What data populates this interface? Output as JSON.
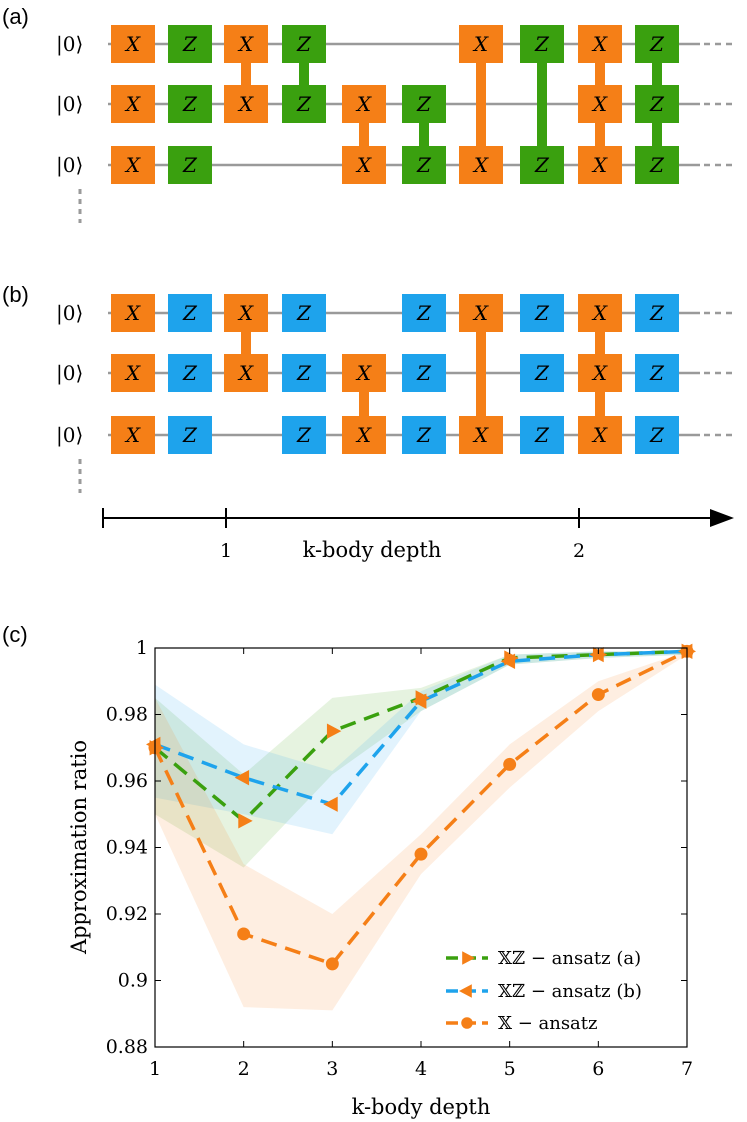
{
  "panels": {
    "a": {
      "label": "(a)"
    },
    "b": {
      "label": "(b)"
    },
    "c": {
      "label": "(c)"
    }
  },
  "qubit_label": "|0⟩",
  "gate_labels": {
    "X": "X",
    "Z": "Z"
  },
  "colors": {
    "orange": "#f57f17",
    "green": "#3aa00f",
    "blue": "#1ea3ec",
    "wire": "#9a9a9a"
  },
  "depth_axis": {
    "label": "k-body depth",
    "ticks": [
      "1",
      "2"
    ]
  },
  "circuit_a": {
    "gates": [
      {
        "type": "X",
        "col": 1,
        "row": 0
      },
      {
        "type": "X",
        "col": 1,
        "row": 1
      },
      {
        "type": "X",
        "col": 1,
        "row": 2
      },
      {
        "type": "Z",
        "col": 2,
        "row": 0
      },
      {
        "type": "Z",
        "col": 2,
        "row": 1
      },
      {
        "type": "Z",
        "col": 2,
        "row": 2
      },
      {
        "type": "X",
        "col": 3,
        "row": 0
      },
      {
        "type": "X",
        "col": 3,
        "row": 1
      },
      {
        "type": "Z",
        "col": 4,
        "row": 0
      },
      {
        "type": "Z",
        "col": 4,
        "row": 1
      },
      {
        "type": "X",
        "col": 5,
        "row": 1
      },
      {
        "type": "X",
        "col": 5,
        "row": 2
      },
      {
        "type": "Z",
        "col": 6,
        "row": 1
      },
      {
        "type": "Z",
        "col": 6,
        "row": 2
      },
      {
        "type": "X",
        "col": 7,
        "row": 0
      },
      {
        "type": "X",
        "col": 7,
        "row": 2
      },
      {
        "type": "Z",
        "col": 8,
        "row": 0
      },
      {
        "type": "Z",
        "col": 8,
        "row": 2
      },
      {
        "type": "X",
        "col": 9,
        "row": 0
      },
      {
        "type": "X",
        "col": 9,
        "row": 1
      },
      {
        "type": "X",
        "col": 9,
        "row": 2
      },
      {
        "type": "Z",
        "col": 10,
        "row": 0
      },
      {
        "type": "Z",
        "col": 10,
        "row": 1
      },
      {
        "type": "Z",
        "col": 10,
        "row": 2
      }
    ],
    "links": [
      {
        "type": "X",
        "col": 3,
        "from": 0,
        "to": 1
      },
      {
        "type": "Z",
        "col": 4,
        "from": 0,
        "to": 1
      },
      {
        "type": "X",
        "col": 5,
        "from": 1,
        "to": 2
      },
      {
        "type": "Z",
        "col": 6,
        "from": 1,
        "to": 2
      },
      {
        "type": "X",
        "col": 7,
        "from": 0,
        "to": 2
      },
      {
        "type": "Z",
        "col": 8,
        "from": 0,
        "to": 2
      },
      {
        "type": "X",
        "col": 9,
        "from": 0,
        "to": 2
      },
      {
        "type": "Z",
        "col": 10,
        "from": 0,
        "to": 2
      }
    ]
  },
  "circuit_b": {
    "gates": [
      {
        "type": "X",
        "col": 1,
        "row": 0
      },
      {
        "type": "X",
        "col": 1,
        "row": 1
      },
      {
        "type": "X",
        "col": 1,
        "row": 2
      },
      {
        "type": "Z",
        "col": 2,
        "row": 0
      },
      {
        "type": "Z",
        "col": 2,
        "row": 1
      },
      {
        "type": "Z",
        "col": 2,
        "row": 2
      },
      {
        "type": "X",
        "col": 3,
        "row": 0
      },
      {
        "type": "X",
        "col": 3,
        "row": 1
      },
      {
        "type": "Z",
        "col": 4,
        "row": 0
      },
      {
        "type": "Z",
        "col": 4,
        "row": 1
      },
      {
        "type": "Z",
        "col": 4,
        "row": 2
      },
      {
        "type": "X",
        "col": 5,
        "row": 1
      },
      {
        "type": "X",
        "col": 5,
        "row": 2
      },
      {
        "type": "Z",
        "col": 6,
        "row": 0
      },
      {
        "type": "Z",
        "col": 6,
        "row": 1
      },
      {
        "type": "Z",
        "col": 6,
        "row": 2
      },
      {
        "type": "X",
        "col": 7,
        "row": 0
      },
      {
        "type": "X",
        "col": 7,
        "row": 2
      },
      {
        "type": "Z",
        "col": 8,
        "row": 0
      },
      {
        "type": "Z",
        "col": 8,
        "row": 1
      },
      {
        "type": "Z",
        "col": 8,
        "row": 2
      },
      {
        "type": "X",
        "col": 9,
        "row": 0
      },
      {
        "type": "X",
        "col": 9,
        "row": 1
      },
      {
        "type": "X",
        "col": 9,
        "row": 2
      },
      {
        "type": "Z",
        "col": 10,
        "row": 0
      },
      {
        "type": "Z",
        "col": 10,
        "row": 1
      },
      {
        "type": "Z",
        "col": 10,
        "row": 2
      }
    ],
    "links": [
      {
        "type": "X",
        "col": 3,
        "from": 0,
        "to": 1
      },
      {
        "type": "X",
        "col": 5,
        "from": 1,
        "to": 2
      },
      {
        "type": "X",
        "col": 7,
        "from": 0,
        "to": 2
      },
      {
        "type": "X",
        "col": 9,
        "from": 0,
        "to": 2
      }
    ]
  },
  "chart_data": {
    "type": "line",
    "xlabel": "k-body depth",
    "ylabel": "Approximation ratio",
    "xlim": [
      1,
      7
    ],
    "ylim": [
      0.88,
      1.0
    ],
    "xticks": [
      "1",
      "2",
      "3",
      "4",
      "5",
      "6",
      "7"
    ],
    "yticks": [
      "0.88",
      "0.9",
      "0.92",
      "0.94",
      "0.96",
      "0.98",
      "1"
    ],
    "grid": false,
    "legend_position": "bottom-right",
    "series": [
      {
        "name": "𝕏ℤ − ansatz (a)",
        "color": "#3aa00f",
        "marker_color": "#f57f17",
        "marker": "triangle-right",
        "x": [
          1,
          2,
          3,
          4,
          5,
          6,
          7
        ],
        "values": [
          0.97,
          0.948,
          0.975,
          0.985,
          0.997,
          0.998,
          0.999
        ],
        "band_low": [
          0.95,
          0.934,
          0.962,
          0.981,
          0.995,
          0.997,
          0.998
        ],
        "band_high": [
          0.985,
          0.962,
          0.985,
          0.988,
          0.998,
          0.999,
          0.999
        ]
      },
      {
        "name": "𝕏ℤ − ansatz (b)",
        "color": "#1ea3ec",
        "marker_color": "#f57f17",
        "marker": "triangle-left",
        "x": [
          1,
          2,
          3,
          4,
          5,
          6,
          7
        ],
        "values": [
          0.971,
          0.961,
          0.953,
          0.984,
          0.996,
          0.998,
          0.999
        ],
        "band_low": [
          0.955,
          0.95,
          0.944,
          0.981,
          0.995,
          0.997,
          0.998
        ],
        "band_high": [
          0.989,
          0.971,
          0.963,
          0.987,
          0.998,
          0.999,
          0.999
        ]
      },
      {
        "name": "𝕏 − ansatz",
        "color": "#f57f17",
        "marker_color": "#f57f17",
        "marker": "circle",
        "x": [
          1,
          2,
          3,
          4,
          5,
          6,
          7
        ],
        "values": [
          0.97,
          0.914,
          0.905,
          0.938,
          0.965,
          0.986,
          0.999
        ],
        "band_low": [
          0.95,
          0.892,
          0.891,
          0.932,
          0.958,
          0.981,
          0.998
        ],
        "band_high": [
          0.985,
          0.935,
          0.92,
          0.944,
          0.971,
          0.99,
          0.999
        ]
      }
    ]
  }
}
